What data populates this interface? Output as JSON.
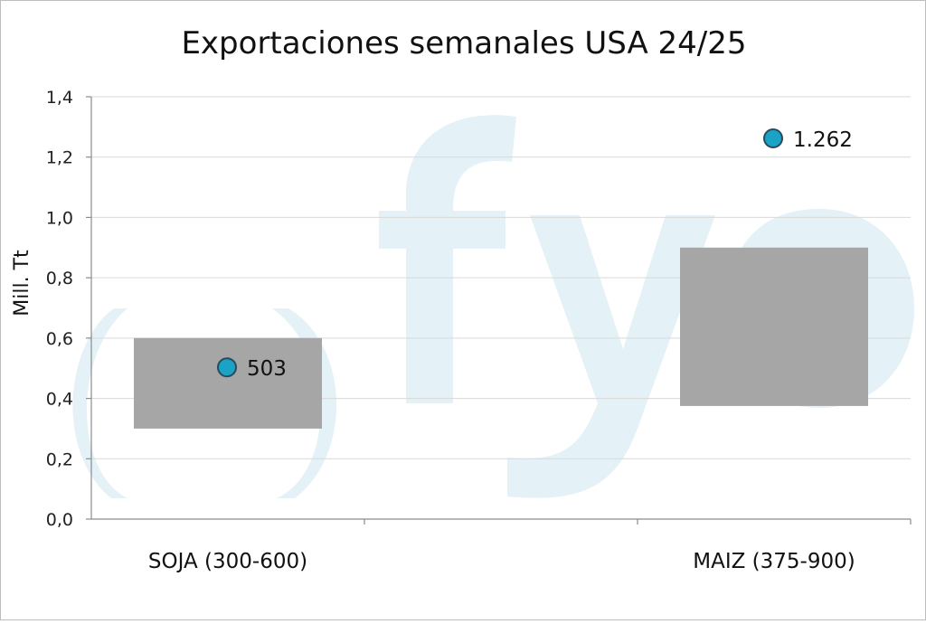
{
  "chart_data": {
    "type": "floating-bar",
    "title": "Exportaciones semanales USA 24/25",
    "xlabel": "",
    "ylabel": "Mill. Tt",
    "ylim": [
      0,
      1.4
    ],
    "yticks": [
      "0,0",
      "0,2",
      "0,4",
      "0,6",
      "0,8",
      "1,0",
      "1,2",
      "1,4"
    ],
    "ytick_values": [
      0,
      0.2,
      0.4,
      0.6,
      0.8,
      1.0,
      1.2,
      1.4
    ],
    "grid": true,
    "categories": [
      "SOJA (300-600)",
      "MAIZ (375-900)"
    ],
    "series": [
      {
        "name": "",
        "type": "range",
        "low": [
          0.3,
          0.375
        ],
        "high": [
          0.6,
          0.9
        ]
      },
      {
        "name": "",
        "type": "point",
        "values": [
          0.503,
          1.262
        ],
        "labels": [
          "503",
          "1.262"
        ]
      }
    ],
    "colors": {
      "range": "#a6a6a6",
      "point": "#1ba3c6",
      "point_stroke": "#2b4a5c",
      "grid": "#d9d9d9"
    },
    "watermark": "fyo"
  }
}
